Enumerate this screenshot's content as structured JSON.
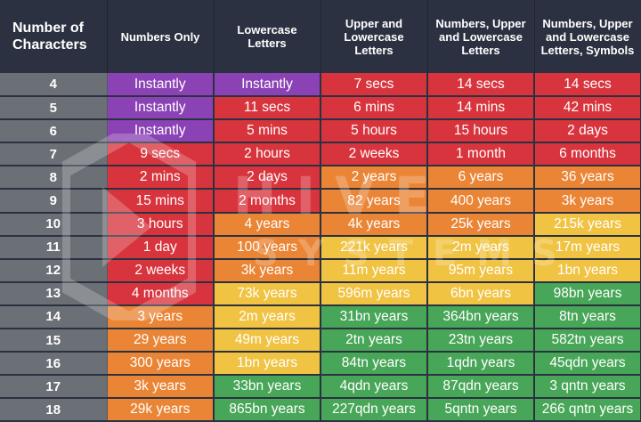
{
  "chart_data": {
    "type": "table",
    "columns": [
      "Number of Characters",
      "Numbers Only",
      "Lowercase Letters",
      "Upper and Lowercase Letters",
      "Numbers, Upper and Lowercase Letters",
      "Numbers, Upper and Lowercase Letters, Symbols"
    ],
    "rows": [
      {
        "chars": "4",
        "cells": [
          "Instantly",
          "Instantly",
          "7 secs",
          "14 secs",
          "14 secs"
        ],
        "levels": [
          "instant",
          "instant",
          "red",
          "red",
          "red"
        ]
      },
      {
        "chars": "5",
        "cells": [
          "Instantly",
          "11 secs",
          "6 mins",
          "14 mins",
          "42 mins"
        ],
        "levels": [
          "instant",
          "red",
          "red",
          "red",
          "red"
        ]
      },
      {
        "chars": "6",
        "cells": [
          "Instantly",
          "5 mins",
          "5 hours",
          "15 hours",
          "2 days"
        ],
        "levels": [
          "instant",
          "red",
          "red",
          "red",
          "red"
        ]
      },
      {
        "chars": "7",
        "cells": [
          "9 secs",
          "2 hours",
          "2 weeks",
          "1 month",
          "6 months"
        ],
        "levels": [
          "red",
          "red",
          "red",
          "red",
          "red"
        ]
      },
      {
        "chars": "8",
        "cells": [
          "2 mins",
          "2 days",
          "2 years",
          "6 years",
          "36 years"
        ],
        "levels": [
          "red",
          "red",
          "orange",
          "orange",
          "orange"
        ]
      },
      {
        "chars": "9",
        "cells": [
          "15 mins",
          "2 months",
          "82 years",
          "400 years",
          "3k years"
        ],
        "levels": [
          "red",
          "red",
          "orange",
          "orange",
          "orange"
        ]
      },
      {
        "chars": "10",
        "cells": [
          "3 hours",
          "4 years",
          "4k years",
          "25k years",
          "215k years"
        ],
        "levels": [
          "red",
          "orange",
          "orange",
          "orange",
          "yellow"
        ]
      },
      {
        "chars": "11",
        "cells": [
          "1 day",
          "100 years",
          "221k years",
          "2m years",
          "17m years"
        ],
        "levels": [
          "red",
          "orange",
          "yellow",
          "yellow",
          "yellow"
        ]
      },
      {
        "chars": "12",
        "cells": [
          "2 weeks",
          "3k years",
          "11m years",
          "95m years",
          "1bn years"
        ],
        "levels": [
          "red",
          "orange",
          "yellow",
          "yellow",
          "yellow"
        ]
      },
      {
        "chars": "13",
        "cells": [
          "4 months",
          "73k years",
          "596m years",
          "6bn years",
          "98bn years"
        ],
        "levels": [
          "red",
          "yellow",
          "yellow",
          "yellow",
          "green"
        ]
      },
      {
        "chars": "14",
        "cells": [
          "3 years",
          "2m years",
          "31bn years",
          "364bn years",
          "8tn years"
        ],
        "levels": [
          "orange",
          "yellow",
          "green",
          "green",
          "green"
        ]
      },
      {
        "chars": "15",
        "cells": [
          "29 years",
          "49m years",
          "2tn years",
          "23tn years",
          "582tn years"
        ],
        "levels": [
          "orange",
          "yellow",
          "green",
          "green",
          "green"
        ]
      },
      {
        "chars": "16",
        "cells": [
          "300 years",
          "1bn years",
          "84tn years",
          "1qdn years",
          "45qdn years"
        ],
        "levels": [
          "orange",
          "yellow",
          "green",
          "green",
          "green"
        ]
      },
      {
        "chars": "17",
        "cells": [
          "3k years",
          "33bn years",
          "4qdn years",
          "87qdn years",
          "3 qntn years"
        ],
        "levels": [
          "orange",
          "green",
          "green",
          "green",
          "green"
        ]
      },
      {
        "chars": "18",
        "cells": [
          "29k years",
          "865bn years",
          "227qdn years",
          "5qntn years",
          "266 qntn years"
        ],
        "levels": [
          "orange",
          "green",
          "green",
          "green",
          "green"
        ]
      }
    ]
  },
  "colors": {
    "header_bg": "#2b3140",
    "row_header": "#6b6f76",
    "instant": "#8a42b5",
    "red": "#d8343d",
    "orange": "#ea8536",
    "yellow": "#f1c343",
    "green": "#48a658"
  },
  "watermark": {
    "line1": "HIVE",
    "line2": "SYSTEMS"
  }
}
